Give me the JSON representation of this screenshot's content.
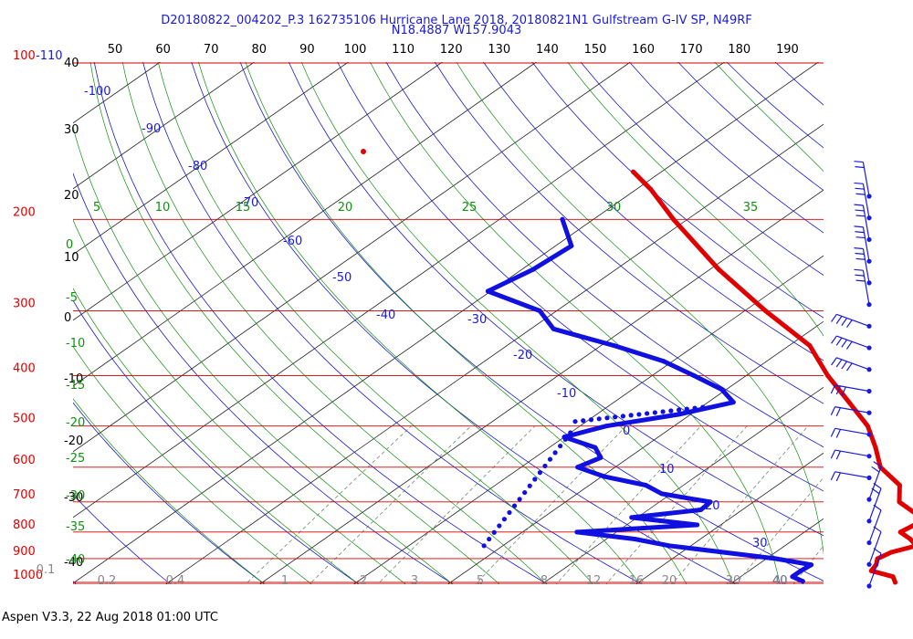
{
  "header": {
    "title_line1": "D20180822_004202_P.3 162735106 Hurricane Lane 2018, 20180821N1 Gulfstream G-IV SP, N49RF",
    "title_line2": "N18.4887 W157.9043"
  },
  "footer": {
    "text": "Aspen V3.3, 22 Aug 2018  01:00 UTC"
  },
  "chart_data": {
    "type": "skew-t log-p sounding",
    "title": "D20180822_004202_P.3 162735106 Hurricane Lane 2018, 20180821N1 Gulfstream G-IV SP, N49RF",
    "subtitle": "N18.4887 W157.9043",
    "pressure_levels_hPa": [
      100,
      200,
      300,
      400,
      500,
      600,
      700,
      800,
      900,
      1000
    ],
    "pressure_label_100_suffix": "-110",
    "celsius_tick_labels": [
      "40",
      "30",
      "20",
      "10",
      "0",
      "-10",
      "-20",
      "-30",
      "-40"
    ],
    "fahrenheit_tick_labels": [
      "50",
      "60",
      "70",
      "80",
      "90",
      "100",
      "110",
      "120",
      "130",
      "140",
      "150",
      "160",
      "170",
      "180",
      "190"
    ],
    "isotherm_labels": [
      "-100",
      "-90",
      "-80",
      "-70",
      "-60",
      "-50",
      "-40",
      "-30",
      "-20",
      "-10",
      "0",
      "10",
      "20",
      "30",
      "40"
    ],
    "dry_adiabat_labels": [
      "5",
      "10",
      "15",
      "20",
      "25",
      "30",
      "35"
    ],
    "moist_adiabat_labels": [
      "0",
      "-5",
      "-10",
      "-15",
      "-20",
      "-25",
      "-30",
      "-35",
      "-40"
    ],
    "mixing_ratio_labels": [
      "0.1",
      "0.2",
      "0.4",
      "1",
      "2",
      "3",
      "5",
      "8",
      "12",
      "16",
      "20",
      "30",
      "40"
    ],
    "series": [
      {
        "name": "Temperature",
        "color": "#e00000",
        "points_p_t": [
          [
            1000,
            27.3
          ],
          [
            975,
            26.2
          ],
          [
            950,
            23.0
          ],
          [
            925,
            22.6
          ],
          [
            900,
            21.8
          ],
          [
            875,
            22.3
          ],
          [
            850,
            24.0
          ],
          [
            825,
            22.3
          ],
          [
            800,
            20.2
          ],
          [
            775,
            20.6
          ],
          [
            750,
            20.2
          ],
          [
            700,
            15.5
          ],
          [
            650,
            13.0
          ],
          [
            600,
            8.2
          ],
          [
            550,
            4.7
          ],
          [
            500,
            0.6
          ],
          [
            450,
            -5.0
          ],
          [
            400,
            -11.3
          ],
          [
            350,
            -17.8
          ],
          [
            300,
            -27.8
          ],
          [
            250,
            -39.0
          ],
          [
            200,
            -51.5
          ],
          [
            175,
            -58.5
          ],
          [
            162,
            -63.0
          ]
        ]
      },
      {
        "name": "Dew point",
        "color": "#1010e0",
        "points_p_t": [
          [
            995,
            17.3
          ],
          [
            975,
            15.5
          ],
          [
            950,
            15.5
          ],
          [
            925,
            15.7
          ],
          [
            900,
            11.0
          ],
          [
            850,
            -2.3
          ],
          [
            825,
            -7.0
          ],
          [
            800,
            -14.2
          ],
          [
            775,
            -2.5
          ],
          [
            750,
            -10.6
          ],
          [
            725,
            -4.4
          ],
          [
            700,
            -4.6
          ],
          [
            675,
            -11.0
          ],
          [
            650,
            -14.0
          ],
          [
            625,
            -19.8
          ],
          [
            600,
            -24.0
          ],
          [
            575,
            -23.0
          ],
          [
            550,
            -25.1
          ],
          [
            525,
            -30.0
          ],
          [
            500,
            -27.2
          ],
          [
            475,
            -21.3
          ],
          [
            450,
            -17.3
          ],
          [
            425,
            -20.5
          ],
          [
            400,
            -25.5
          ],
          [
            375,
            -31.0
          ],
          [
            350,
            -38.6
          ],
          [
            325,
            -47.6
          ],
          [
            300,
            -51.8
          ],
          [
            275,
            -60.3
          ],
          [
            250,
            -58.8
          ],
          [
            225,
            -58.3
          ],
          [
            200,
            -63.3
          ]
        ]
      },
      {
        "name": "Dew point (sparse)",
        "color": "#1010e0",
        "points_p_t": [
          [
            850,
            -22.0
          ],
          [
            515,
            -30.0
          ],
          [
            490,
            -31.2
          ],
          [
            460,
            -19.8
          ],
          [
            345,
            -40.6
          ]
        ]
      }
    ],
    "wind_barbs_ms": [
      [
        1000,
        12
      ],
      [
        975,
        15
      ],
      [
        950,
        15
      ],
      [
        900,
        15
      ],
      [
        850,
        15
      ],
      [
        800,
        15
      ],
      [
        750,
        20
      ],
      [
        700,
        25
      ],
      [
        650,
        25
      ],
      [
        600,
        15
      ],
      [
        550,
        10
      ],
      [
        500,
        10
      ],
      [
        450,
        10
      ],
      [
        400,
        10
      ],
      [
        350,
        10
      ],
      [
        300,
        10
      ],
      [
        250,
        5
      ],
      [
        200,
        5
      ],
      [
        150,
        5
      ]
    ],
    "background": "#ffffff"
  }
}
